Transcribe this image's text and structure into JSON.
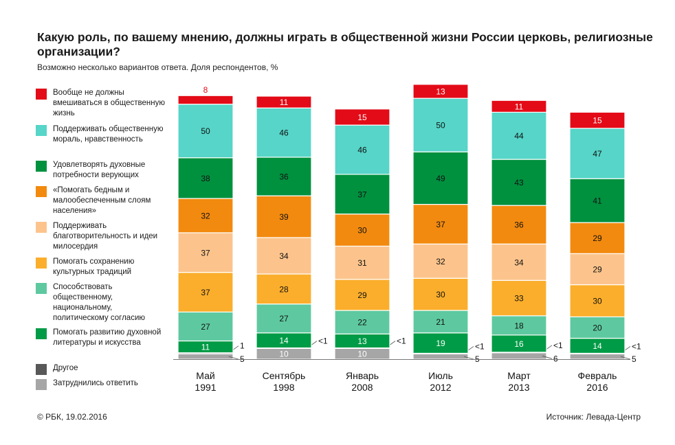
{
  "title": "Какую роль, по вашему мнению, должны играть в общественной жизни России церковь, религиозные организации?",
  "subtitle": "Возможно несколько вариантов ответа. Доля респондентов, %",
  "footer": {
    "copyright": "© РБК, 19.02.2016",
    "source": "Источник: Левада-Центр"
  },
  "legend": [
    {
      "label": "Вообще не должны вмешиваться в общественную жизнь",
      "color": "#e30b17"
    },
    {
      "label": "Поддерживать общественную мораль, нравственность",
      "color": "#56d5c8"
    },
    {
      "label": "Удовлетворять духовные потребности верующих",
      "color": "#00913f"
    },
    {
      "label": "«Помогать бедным и малообеспеченным слоям населения»",
      "color": "#f28a0f"
    },
    {
      "label": "Поддерживать благотворительность и идеи милосердия",
      "color": "#fcc48c"
    },
    {
      "label": "Помогать сохранению культурных традиций",
      "color": "#fbae2c"
    },
    {
      "label": "Способствовать общественному, национальному, политическому согласию",
      "color": "#5ec9a0"
    },
    {
      "label": "Помогать развитию духовной литературы и искусства",
      "color": "#009b46"
    },
    {
      "label": "Другое",
      "color": "#585858"
    },
    {
      "label": "Затруднились ответить",
      "color": "#a6a6a6"
    }
  ],
  "chart_data": {
    "type": "bar",
    "stacked": true,
    "categories": [
      "Май 1991",
      "Сентябрь 1998",
      "Январь 2008",
      "Июль 2012",
      "Март 2013",
      "Февраль 2016"
    ],
    "series": [
      {
        "name": "Затруднились ответить",
        "values": [
          5,
          10,
          10,
          5,
          6,
          5
        ],
        "labels": [
          "5",
          "10",
          "10",
          "5",
          "6",
          "5"
        ],
        "color": "#a6a6a6"
      },
      {
        "name": "Другое",
        "values": [
          1,
          0.5,
          0.5,
          0.5,
          0.5,
          0.5
        ],
        "labels": [
          "1",
          "<1",
          "<1",
          "<1",
          "<1",
          "<1"
        ],
        "color": "#585858"
      },
      {
        "name": "Помогать развитию духовной литературы и искусства",
        "values": [
          11,
          14,
          13,
          19,
          16,
          14
        ],
        "color": "#009b46"
      },
      {
        "name": "Способствовать общественному, национальному, политическому согласию",
        "values": [
          27,
          27,
          22,
          21,
          18,
          20
        ],
        "color": "#5ec9a0"
      },
      {
        "name": "Помогать сохранению культурных традиций",
        "values": [
          37,
          28,
          29,
          30,
          33,
          30
        ],
        "color": "#fbae2c"
      },
      {
        "name": "Поддерживать благотворительность и идеи милосердия",
        "values": [
          37,
          34,
          31,
          32,
          34,
          29
        ],
        "color": "#fcc48c"
      },
      {
        "name": "«Помогать бедным и малообеспеченным слоям населения»",
        "values": [
          32,
          39,
          30,
          37,
          36,
          29
        ],
        "color": "#f28a0f"
      },
      {
        "name": "Удовлетворять духовные потребности верующих",
        "values": [
          38,
          36,
          37,
          49,
          43,
          41
        ],
        "color": "#00913f"
      },
      {
        "name": "Поддерживать общественную мораль, нравственность",
        "values": [
          50,
          46,
          46,
          50,
          44,
          47
        ],
        "color": "#56d5c8"
      },
      {
        "name": "Вообще не должны вмешиваться в общественную жизнь",
        "values": [
          8,
          11,
          15,
          13,
          11,
          15
        ],
        "color": "#e30b17"
      }
    ]
  }
}
